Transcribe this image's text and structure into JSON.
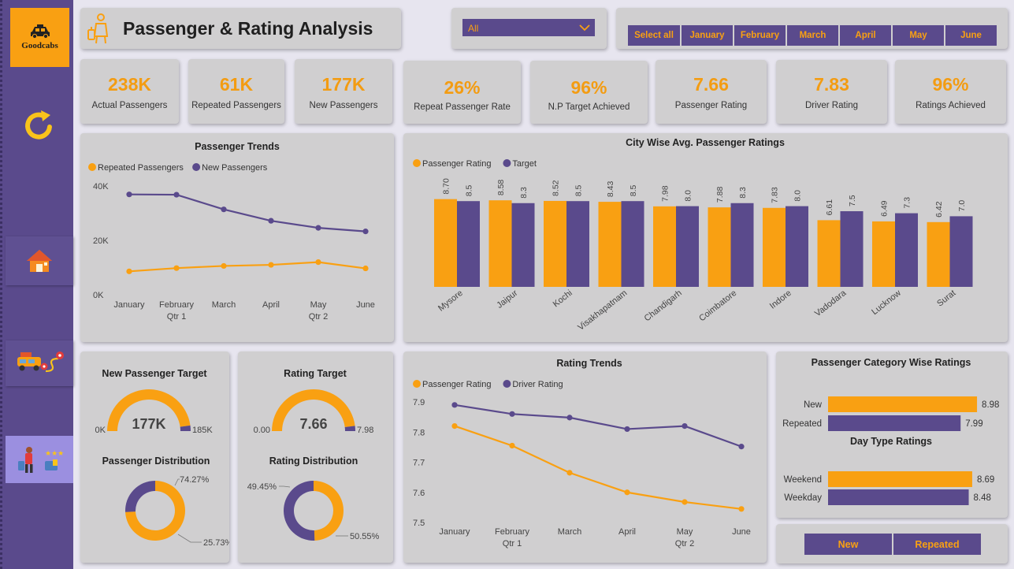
{
  "brand": {
    "name": "Goodcabs"
  },
  "header": {
    "title": "Passenger & Rating Analysis"
  },
  "filter": {
    "city_selected": "All",
    "months": [
      "Select all",
      "January",
      "February",
      "March",
      "April",
      "May",
      "June"
    ]
  },
  "kpis": [
    {
      "value": "238K",
      "label": "Actual Passengers"
    },
    {
      "value": "61K",
      "label": "Repeated Passengers"
    },
    {
      "value": "177K",
      "label": "New Passengers"
    },
    {
      "value": "26%",
      "label": "Repeat Passenger Rate"
    },
    {
      "value": "96%",
      "label": "N.P Target Achieved"
    },
    {
      "value": "7.66",
      "label": "Passenger Rating"
    },
    {
      "value": "7.83",
      "label": "Driver Rating"
    },
    {
      "value": "96%",
      "label": "Ratings Achieved"
    }
  ],
  "colors": {
    "orange": "#f9a012",
    "purple": "#5a4a8c",
    "card": "#d0cfd0"
  },
  "icons": [
    "taxi-icon",
    "refresh-icon",
    "home-icon",
    "trip-route-icon",
    "passenger-rating-icon",
    "traveller-icon",
    "chevron-down-icon"
  ],
  "gauges": [
    {
      "title": "New Passenger Target",
      "center": "177K",
      "min": "0K",
      "max": "185K",
      "fraction": 0.957
    },
    {
      "title": "Rating Target",
      "center": "7.66",
      "min": "0.00",
      "max": "7.98",
      "fraction": 0.96
    }
  ],
  "category_buttons": [
    "New",
    "Repeated"
  ],
  "chart_data": [
    {
      "type": "line",
      "title": "Passenger Trends",
      "categories": [
        "January",
        "February",
        "March",
        "April",
        "May",
        "June"
      ],
      "quarters": [
        "Qtr 1",
        "Qtr 2"
      ],
      "yticks": [
        "0K",
        "20K",
        "40K"
      ],
      "ylim": [
        0,
        40000
      ],
      "legend": "top-left",
      "series": [
        {
          "name": "Repeated Passengers",
          "color": "#f9a012",
          "values": [
            8600,
            9800,
            10600,
            11000,
            12000,
            9700
          ]
        },
        {
          "name": "New Passengers",
          "color": "#5a4a8c",
          "values": [
            36900,
            36800,
            31400,
            27200,
            24600,
            23300
          ]
        }
      ]
    },
    {
      "type": "bar",
      "title": "City Wise Avg. Passenger Ratings",
      "categories": [
        "Mysore",
        "Jaipur",
        "Kochi",
        "Visakhapatnam",
        "Chandigarh",
        "Coimbatore",
        "Indore",
        "Vadodara",
        "Lucknow",
        "Surat"
      ],
      "ylim": [
        0,
        9.5
      ],
      "legend": "top-left",
      "series": [
        {
          "name": "Passenger Rating",
          "color": "#f9a012",
          "values": [
            8.7,
            8.58,
            8.52,
            8.43,
            7.98,
            7.88,
            7.83,
            6.61,
            6.49,
            6.42
          ],
          "labels": [
            "8.70",
            "8.58",
            "8.52",
            "8.43",
            "7.98",
            "7.88",
            "7.83",
            "6.61",
            "6.49",
            "6.42"
          ]
        },
        {
          "name": "Target",
          "color": "#5a4a8c",
          "values": [
            8.5,
            8.3,
            8.5,
            8.5,
            8.0,
            8.3,
            8.0,
            7.5,
            7.3,
            7.0
          ],
          "labels": [
            "8.5",
            "8.3",
            "8.5",
            "8.5",
            "8.0",
            "8.3",
            "8.0",
            "7.5",
            "7.3",
            "7.0"
          ]
        }
      ]
    },
    {
      "type": "line",
      "title": "Rating Trends",
      "categories": [
        "January",
        "February",
        "March",
        "April",
        "May",
        "June"
      ],
      "quarters": [
        "Qtr 1",
        "Qtr 2"
      ],
      "yticks": [
        "7.5",
        "7.6",
        "7.7",
        "7.8",
        "7.9"
      ],
      "ylim": [
        7.5,
        7.9
      ],
      "legend": "top-left",
      "series": [
        {
          "name": "Passenger Rating",
          "color": "#f9a012",
          "values": [
            7.82,
            7.755,
            7.665,
            7.6,
            7.568,
            7.545
          ]
        },
        {
          "name": "Driver Rating",
          "color": "#5a4a8c",
          "values": [
            7.89,
            7.86,
            7.848,
            7.81,
            7.82,
            7.752
          ]
        }
      ]
    },
    {
      "type": "bar",
      "title": "Passenger Category Wise Ratings",
      "categories": [
        "New",
        "Repeated"
      ],
      "xlim": [
        0,
        9.5
      ],
      "values": [
        8.98,
        7.99
      ],
      "labels": [
        "8.98",
        "7.99"
      ],
      "colors": [
        "#f9a012",
        "#5a4a8c"
      ]
    },
    {
      "type": "bar",
      "title": "Day Type Ratings",
      "categories": [
        "Weekend",
        "Weekday"
      ],
      "xlim": [
        0,
        9.5
      ],
      "values": [
        8.69,
        8.48
      ],
      "labels": [
        "8.69",
        "8.48"
      ],
      "colors": [
        "#f9a012",
        "#5a4a8c"
      ]
    },
    {
      "type": "pie",
      "title": "Passenger Distribution",
      "values": [
        74.27,
        25.73
      ],
      "labels": [
        "74.27%",
        "25.73%"
      ],
      "colors": [
        "#f9a012",
        "#5a4a8c"
      ]
    },
    {
      "type": "pie",
      "title": "Rating Distribution",
      "values": [
        49.45,
        50.55
      ],
      "labels": [
        "49.45%",
        "50.55%"
      ],
      "colors": [
        "#f9a012",
        "#5a4a8c"
      ]
    }
  ]
}
